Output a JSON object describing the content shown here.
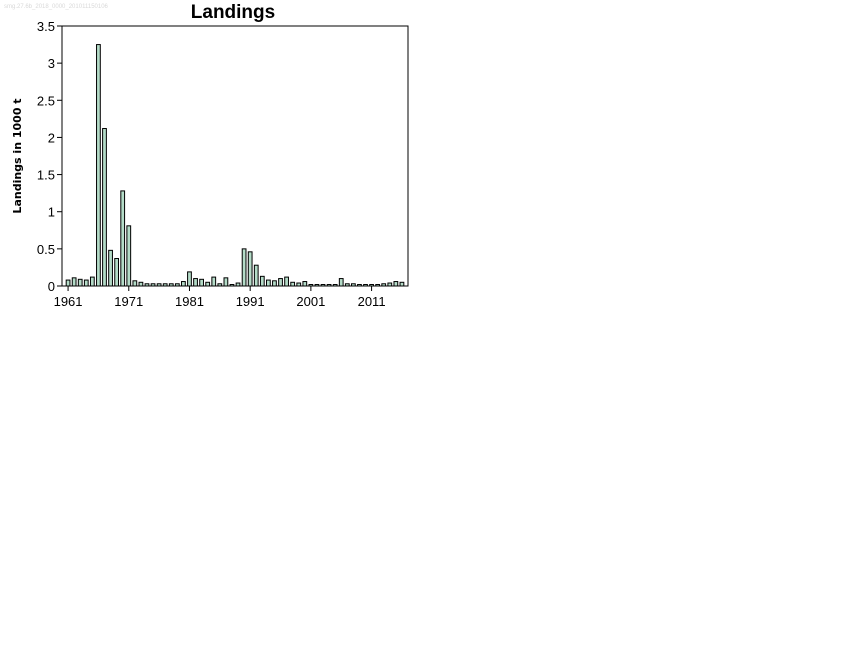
{
  "watermark": "smg.27.6b_2018_0000_201011150106",
  "chart_data": {
    "type": "bar",
    "title": "Landings",
    "xlabel": "",
    "ylabel": "Landings in 1000 t",
    "ylim": [
      0,
      3.5
    ],
    "xlim": [
      1960,
      2017
    ],
    "yticks": [
      "0",
      "0.5",
      "1",
      "1.5",
      "2",
      "2.5",
      "3",
      "3.5"
    ],
    "xticks": [
      "1961",
      "1971",
      "1981",
      "1991",
      "2001",
      "2011"
    ],
    "grid": false,
    "legend": "none",
    "bar_color": "#b4dcc8",
    "x": [
      1961,
      1962,
      1963,
      1964,
      1965,
      1966,
      1967,
      1968,
      1969,
      1970,
      1971,
      1972,
      1973,
      1974,
      1975,
      1976,
      1977,
      1978,
      1979,
      1980,
      1981,
      1982,
      1983,
      1984,
      1985,
      1986,
      1987,
      1988,
      1989,
      1990,
      1991,
      1992,
      1993,
      1994,
      1995,
      1996,
      1997,
      1998,
      1999,
      2000,
      2001,
      2002,
      2003,
      2004,
      2005,
      2006,
      2007,
      2008,
      2009,
      2010,
      2011,
      2012,
      2013,
      2014,
      2015,
      2016
    ],
    "values": [
      0.08,
      0.11,
      0.09,
      0.08,
      0.12,
      3.25,
      2.12,
      0.48,
      0.37,
      1.28,
      0.81,
      0.07,
      0.05,
      0.03,
      0.03,
      0.03,
      0.03,
      0.03,
      0.03,
      0.06,
      0.19,
      0.1,
      0.09,
      0.05,
      0.12,
      0.03,
      0.11,
      0.02,
      0.04,
      0.5,
      0.46,
      0.28,
      0.13,
      0.08,
      0.07,
      0.1,
      0.12,
      0.05,
      0.04,
      0.06,
      0.02,
      0.02,
      0.02,
      0.02,
      0.02,
      0.1,
      0.03,
      0.03,
      0.02,
      0.02,
      0.02,
      0.02,
      0.03,
      0.04,
      0.06,
      0.05
    ]
  }
}
